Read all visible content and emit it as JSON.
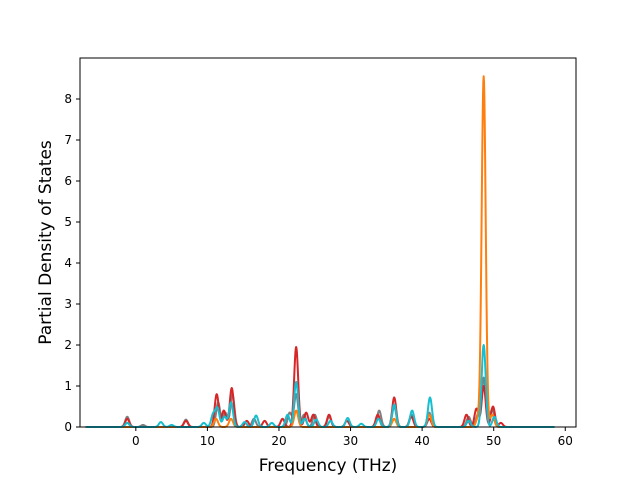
{
  "chart_data": {
    "type": "line",
    "title": "",
    "xlabel": "Frequency (THz)",
    "ylabel": "Partial Density of States",
    "xlim": [
      -7.8,
      61.5
    ],
    "ylim": [
      0,
      9.0
    ],
    "xticks": [
      0,
      10,
      20,
      30,
      40,
      50,
      60
    ],
    "yticks": [
      0,
      1,
      2,
      3,
      4,
      5,
      6,
      7,
      8
    ],
    "grid": false,
    "legend": "none",
    "x_range": [
      -7,
      58.5
    ],
    "series": [
      {
        "color": "#7f7f7f",
        "peaks": [
          [
            -1.2,
            0.25
          ],
          [
            1,
            0.05
          ],
          [
            7,
            0.18
          ],
          [
            11.5,
            0.6
          ],
          [
            12.5,
            0.35
          ],
          [
            13.5,
            0.8
          ],
          [
            16.5,
            0.2
          ],
          [
            21.5,
            0.35
          ],
          [
            22.4,
            0.8
          ],
          [
            23.5,
            0.3
          ],
          [
            25,
            0.3
          ],
          [
            27,
            0.25
          ],
          [
            34,
            0.4
          ],
          [
            36.1,
            0.5
          ],
          [
            38.5,
            0.3
          ],
          [
            41,
            0.35
          ],
          [
            46.5,
            0.25
          ],
          [
            47.8,
            0.3
          ],
          [
            48.6,
            1.2
          ],
          [
            49.8,
            0.45
          ]
        ]
      },
      {
        "color": "#d62728",
        "peaks": [
          [
            -1.2,
            0.2
          ],
          [
            7,
            0.15
          ],
          [
            11.3,
            0.8
          ],
          [
            12.3,
            0.4
          ],
          [
            13.4,
            0.95
          ],
          [
            15.5,
            0.15
          ],
          [
            18,
            0.15
          ],
          [
            20.5,
            0.2
          ],
          [
            22.4,
            1.95
          ],
          [
            23.8,
            0.35
          ],
          [
            24.8,
            0.3
          ],
          [
            27,
            0.3
          ],
          [
            29.5,
            0.15
          ],
          [
            33.8,
            0.3
          ],
          [
            36.1,
            0.72
          ],
          [
            38.5,
            0.25
          ],
          [
            41,
            0.2
          ],
          [
            46.2,
            0.3
          ],
          [
            47.6,
            0.45
          ],
          [
            48.6,
            1.0
          ],
          [
            49.9,
            0.5
          ],
          [
            51,
            0.1
          ]
        ]
      },
      {
        "color": "#ff7f0e",
        "peaks": [
          [
            11.2,
            0.2
          ],
          [
            13.3,
            0.2
          ],
          [
            22.4,
            0.4
          ],
          [
            36.1,
            0.2
          ],
          [
            41,
            0.3
          ],
          [
            47.8,
            0.2
          ],
          [
            48.6,
            8.55
          ],
          [
            49.8,
            0.3
          ]
        ]
      },
      {
        "color": "#17becf",
        "peaks": [
          [
            -1.2,
            0.1
          ],
          [
            3.5,
            0.12
          ],
          [
            5,
            0.05
          ],
          [
            9.5,
            0.1
          ],
          [
            10.8,
            0.3
          ],
          [
            11.4,
            0.45
          ],
          [
            12.4,
            0.25
          ],
          [
            13.3,
            0.6
          ],
          [
            15.2,
            0.12
          ],
          [
            16.8,
            0.28
          ],
          [
            19,
            0.1
          ],
          [
            21.2,
            0.3
          ],
          [
            22.4,
            1.1
          ],
          [
            23.6,
            0.2
          ],
          [
            25.2,
            0.18
          ],
          [
            27.2,
            0.15
          ],
          [
            29.6,
            0.22
          ],
          [
            31.5,
            0.08
          ],
          [
            33.9,
            0.2
          ],
          [
            36.1,
            0.55
          ],
          [
            38.6,
            0.4
          ],
          [
            41.1,
            0.72
          ],
          [
            46.5,
            0.15
          ],
          [
            48.6,
            2.0
          ],
          [
            50.1,
            0.25
          ]
        ]
      }
    ]
  }
}
